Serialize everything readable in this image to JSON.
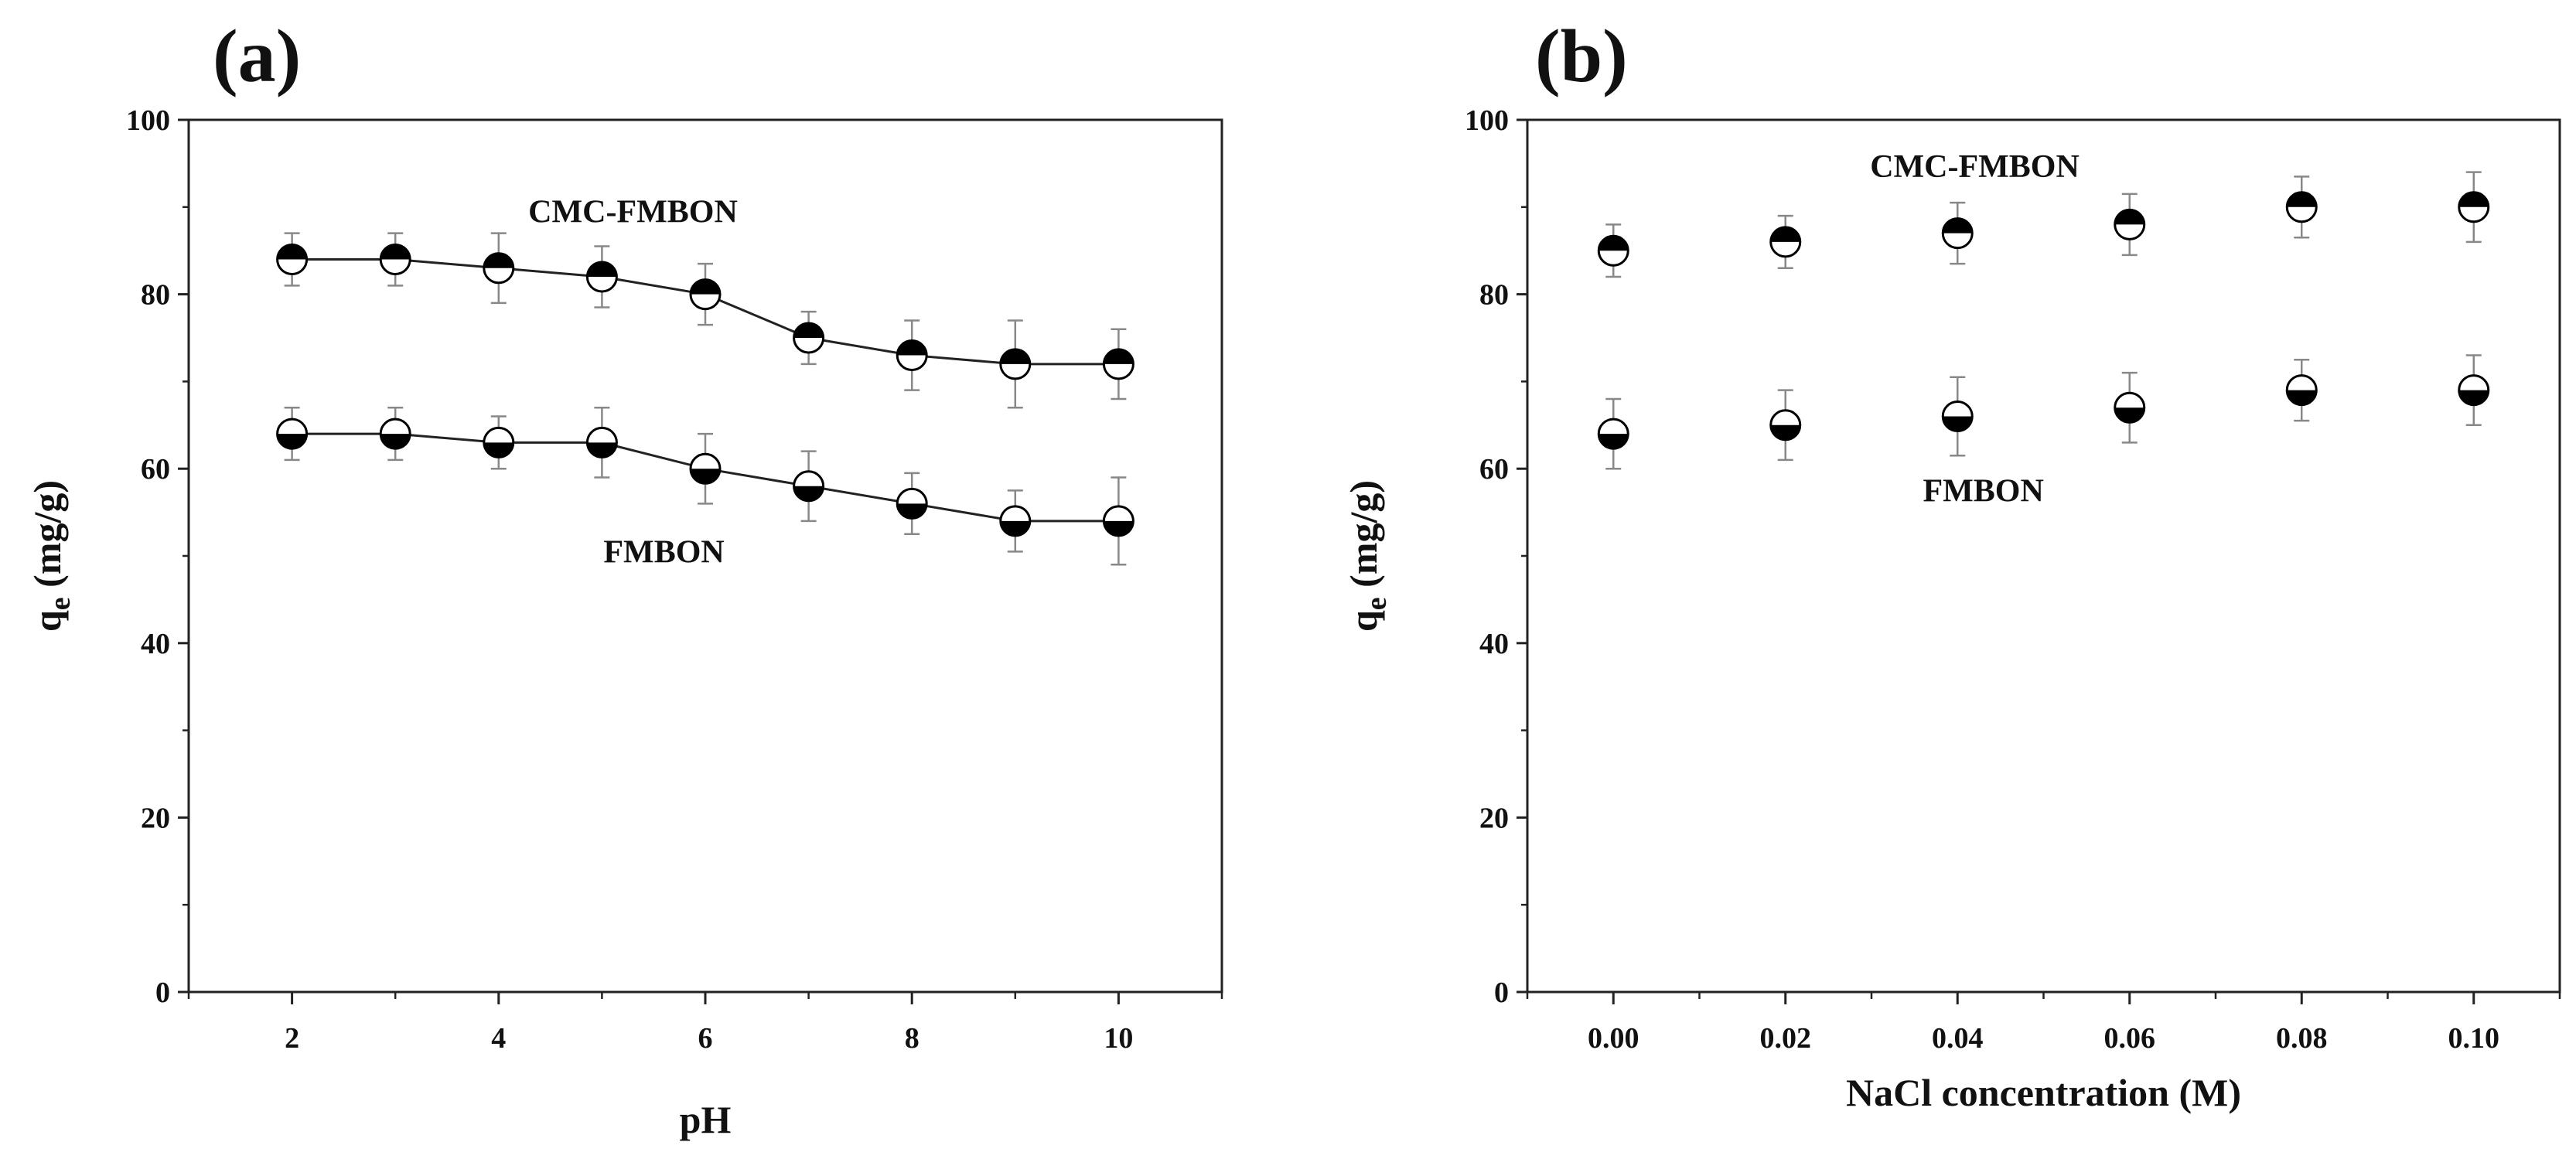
{
  "chart_data": [
    {
      "panel_label": "(a)",
      "type": "scatter",
      "connected": true,
      "xlabel": "pH",
      "ylabel_main": "q",
      "ylabel_sub": "e",
      "ylabel_unit": " (mg/g)",
      "xlim": [
        1,
        11
      ],
      "ylim": [
        0,
        100
      ],
      "xticks": [
        2,
        4,
        6,
        8,
        10
      ],
      "xtick_labels": [
        "2",
        "4",
        "6",
        "8",
        "10"
      ],
      "yticks": [
        0,
        20,
        40,
        60,
        80,
        100
      ],
      "ytick_labels": [
        "0",
        "20",
        "40",
        "60",
        "80",
        "100"
      ],
      "series": [
        {
          "name": "CMC-FMBON",
          "x": [
            2,
            3,
            4,
            5,
            6,
            7,
            8,
            9,
            10
          ],
          "y": [
            84,
            84,
            83,
            82,
            80,
            75,
            73,
            72,
            72
          ],
          "err": [
            3,
            3,
            4,
            3.5,
            3.5,
            3,
            4,
            5,
            4
          ]
        },
        {
          "name": "FMBON",
          "x": [
            2,
            3,
            4,
            5,
            6,
            7,
            8,
            9,
            10
          ],
          "y": [
            64,
            64,
            63,
            63,
            60,
            58,
            56,
            54,
            54
          ],
          "err": [
            3,
            3,
            3,
            4,
            4,
            4,
            3.5,
            3.5,
            5
          ]
        }
      ],
      "annotations": [
        {
          "text": "CMC-FMBON",
          "x": 5.3,
          "y": 89.5
        },
        {
          "text": "FMBON",
          "x": 5.6,
          "y": 50.5
        }
      ]
    },
    {
      "panel_label": "(b)",
      "type": "scatter",
      "connected": false,
      "xlabel": "NaCl concentration (M)",
      "ylabel_main": "q",
      "ylabel_sub": "e",
      "ylabel_unit": " (mg/g)",
      "xlim": [
        -0.01,
        0.11
      ],
      "ylim": [
        0,
        100
      ],
      "xticks": [
        0,
        0.02,
        0.04,
        0.06,
        0.08,
        0.1
      ],
      "xtick_labels": [
        "0.00",
        "0.02",
        "0.04",
        "0.06",
        "0.08",
        "0.10"
      ],
      "yticks": [
        0,
        20,
        40,
        60,
        80,
        100
      ],
      "ytick_labels": [
        "0",
        "20",
        "40",
        "60",
        "80",
        "100"
      ],
      "series": [
        {
          "name": "CMC-FMBON",
          "x": [
            0,
            0.02,
            0.04,
            0.06,
            0.08,
            0.1
          ],
          "y": [
            85,
            86,
            87,
            88,
            90,
            90
          ],
          "err": [
            3,
            3,
            3.5,
            3.5,
            3.5,
            4
          ]
        },
        {
          "name": "FMBON",
          "x": [
            0,
            0.02,
            0.04,
            0.06,
            0.08,
            0.1
          ],
          "y": [
            64,
            65,
            66,
            67,
            69,
            69
          ],
          "err": [
            4,
            4,
            4.5,
            4,
            3.5,
            4
          ]
        }
      ],
      "annotations": [
        {
          "text": "CMC-FMBON",
          "x": 0.042,
          "y": 94.7
        },
        {
          "text": "FMBON",
          "x": 0.043,
          "y": 57.5
        }
      ]
    }
  ]
}
